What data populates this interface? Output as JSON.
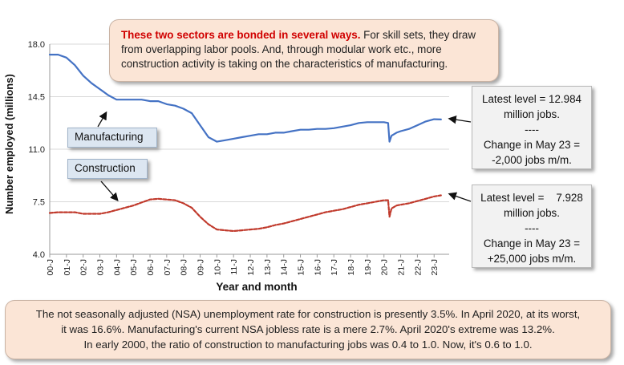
{
  "chart_data": {
    "type": "line",
    "xlabel": "Year and month",
    "ylabel": "Number employed (millions)",
    "ylim": [
      4.0,
      18.0
    ],
    "yticks": [
      "4.0",
      "7.5",
      "11.0",
      "14.5",
      "18.0"
    ],
    "xticks": [
      "00-J",
      "01-J",
      "02-J",
      "03-J",
      "04-J",
      "05-J",
      "06-J",
      "07-J",
      "08-J",
      "09-J",
      "10-J",
      "11-J",
      "12-J",
      "13-J",
      "14-J",
      "15-J",
      "16-J",
      "17-J",
      "18-J",
      "19-J",
      "20-J",
      "21-J",
      "22-J",
      "23-J"
    ],
    "xrange": [
      2000.0,
      2023.9
    ],
    "grid": "horizontal",
    "series": [
      {
        "name": "Manufacturing",
        "color": "#4472c4",
        "style": "solid",
        "points": [
          [
            2000.0,
            17.3
          ],
          [
            2000.5,
            17.3
          ],
          [
            2001.0,
            17.1
          ],
          [
            2001.5,
            16.6
          ],
          [
            2002.0,
            15.9
          ],
          [
            2002.5,
            15.4
          ],
          [
            2003.0,
            15.0
          ],
          [
            2003.5,
            14.6
          ],
          [
            2004.0,
            14.3
          ],
          [
            2004.5,
            14.3
          ],
          [
            2005.0,
            14.3
          ],
          [
            2005.5,
            14.3
          ],
          [
            2006.0,
            14.2
          ],
          [
            2006.5,
            14.2
          ],
          [
            2007.0,
            14.0
          ],
          [
            2007.5,
            13.9
          ],
          [
            2008.0,
            13.7
          ],
          [
            2008.5,
            13.4
          ],
          [
            2009.0,
            12.6
          ],
          [
            2009.5,
            11.8
          ],
          [
            2010.0,
            11.5
          ],
          [
            2010.5,
            11.6
          ],
          [
            2011.0,
            11.7
          ],
          [
            2011.5,
            11.8
          ],
          [
            2012.0,
            11.9
          ],
          [
            2012.5,
            12.0
          ],
          [
            2013.0,
            12.0
          ],
          [
            2013.5,
            12.1
          ],
          [
            2014.0,
            12.1
          ],
          [
            2014.5,
            12.2
          ],
          [
            2015.0,
            12.3
          ],
          [
            2015.5,
            12.3
          ],
          [
            2016.0,
            12.35
          ],
          [
            2016.5,
            12.35
          ],
          [
            2017.0,
            12.4
          ],
          [
            2017.5,
            12.5
          ],
          [
            2018.0,
            12.6
          ],
          [
            2018.5,
            12.75
          ],
          [
            2019.0,
            12.8
          ],
          [
            2019.5,
            12.8
          ],
          [
            2020.0,
            12.8
          ],
          [
            2020.25,
            12.75
          ],
          [
            2020.33,
            11.5
          ],
          [
            2020.45,
            11.9
          ],
          [
            2020.75,
            12.1
          ],
          [
            2021.0,
            12.2
          ],
          [
            2021.5,
            12.35
          ],
          [
            2022.0,
            12.6
          ],
          [
            2022.5,
            12.85
          ],
          [
            2023.0,
            13.0
          ],
          [
            2023.41,
            12.98
          ]
        ]
      },
      {
        "name": "Construction",
        "color": "#c0392b",
        "style": "dashed",
        "points": [
          [
            2000.0,
            6.75
          ],
          [
            2000.5,
            6.8
          ],
          [
            2001.0,
            6.8
          ],
          [
            2001.5,
            6.8
          ],
          [
            2002.0,
            6.7
          ],
          [
            2002.5,
            6.7
          ],
          [
            2003.0,
            6.7
          ],
          [
            2003.5,
            6.8
          ],
          [
            2004.0,
            6.95
          ],
          [
            2004.5,
            7.1
          ],
          [
            2005.0,
            7.25
          ],
          [
            2005.5,
            7.45
          ],
          [
            2006.0,
            7.65
          ],
          [
            2006.5,
            7.7
          ],
          [
            2007.0,
            7.65
          ],
          [
            2007.5,
            7.6
          ],
          [
            2008.0,
            7.4
          ],
          [
            2008.5,
            7.1
          ],
          [
            2009.0,
            6.5
          ],
          [
            2009.5,
            6.0
          ],
          [
            2010.0,
            5.65
          ],
          [
            2010.5,
            5.6
          ],
          [
            2011.0,
            5.55
          ],
          [
            2011.5,
            5.6
          ],
          [
            2012.0,
            5.65
          ],
          [
            2012.5,
            5.7
          ],
          [
            2013.0,
            5.8
          ],
          [
            2013.5,
            5.95
          ],
          [
            2014.0,
            6.05
          ],
          [
            2014.5,
            6.2
          ],
          [
            2015.0,
            6.35
          ],
          [
            2015.5,
            6.5
          ],
          [
            2016.0,
            6.65
          ],
          [
            2016.5,
            6.8
          ],
          [
            2017.0,
            6.9
          ],
          [
            2017.5,
            7.0
          ],
          [
            2018.0,
            7.15
          ],
          [
            2018.5,
            7.3
          ],
          [
            2019.0,
            7.4
          ],
          [
            2019.5,
            7.5
          ],
          [
            2020.0,
            7.6
          ],
          [
            2020.25,
            7.6
          ],
          [
            2020.33,
            6.5
          ],
          [
            2020.45,
            7.05
          ],
          [
            2020.75,
            7.25
          ],
          [
            2021.0,
            7.3
          ],
          [
            2021.5,
            7.4
          ],
          [
            2022.0,
            7.55
          ],
          [
            2022.5,
            7.7
          ],
          [
            2023.0,
            7.85
          ],
          [
            2023.41,
            7.93
          ]
        ]
      }
    ]
  },
  "top_callout": {
    "lead": "These two sectors are bonded in several ways.",
    "body": " For skill sets, they draw from overlapping labor pools. And, through modular work etc., more construction activity is taking on the characteristics of manufacturing."
  },
  "manufacturing_box": {
    "line1": "Latest level = 12.984",
    "line2": "million jobs.",
    "line3": "----",
    "line4": "Change in May 23 =",
    "line5": "-2,000 jobs m/m."
  },
  "construction_box": {
    "line1": "Latest level =    7.928",
    "line2": "million jobs.",
    "line3": "----",
    "line4": "Change in May 23 =",
    "line5": "+25,000 jobs m/m."
  },
  "labels": {
    "manufacturing": "Manufacturing",
    "construction": "Construction"
  },
  "bottom_callout": {
    "line1": "The not seasonally adjusted (NSA) unemployment rate for construction is presently 3.5%. In April 2020, at its worst,",
    "line2": "it was 16.6%. Manufacturing's current NSA jobless rate is a mere 2.7%. April 2020's extreme was 13.2%.",
    "line3": "In early 2000, the ratio of construction to manufacturing jobs was 0.4 to 1.0. Now, it's 0.6 to 1.0."
  }
}
